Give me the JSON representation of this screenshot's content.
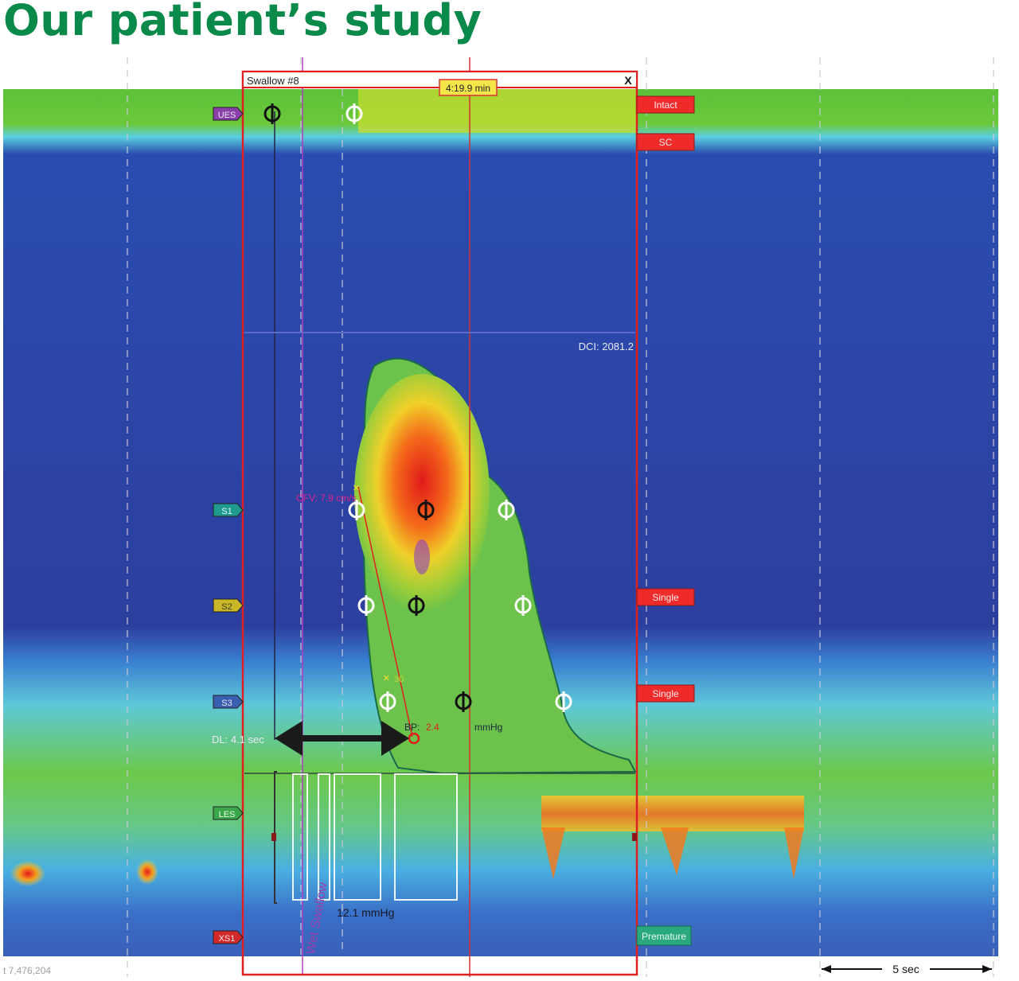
{
  "page_title": "Our patient’s study",
  "swallow_window": {
    "title": "Swallow #8",
    "close_label": "X",
    "time_marker": "4:19.9 min",
    "dci_label": "DCI: 2081.2",
    "cfv_label": "CFV: 7.9 cm/s",
    "bp_value": "2.4",
    "bp_label": "BP:",
    "bp_unit": "mmHg",
    "dl_label": "DL: 4.1 sec",
    "irp_value": "12.1 mmHg",
    "swallow_type": "Wet Swallow",
    "iso_value": "30"
  },
  "channel_markers": [
    {
      "label": "UES",
      "color": "#8b3fa8"
    },
    {
      "label": "S1",
      "color": "#1f9a8f"
    },
    {
      "label": "S2",
      "color": "#c8b828"
    },
    {
      "label": "S3",
      "color": "#3a5fb0"
    },
    {
      "label": "LES",
      "color": "#3aa84a"
    },
    {
      "label": "XS1",
      "color": "#d22a2a"
    }
  ],
  "classification_tags": [
    {
      "text": "Intact",
      "kind": "red"
    },
    {
      "text": "SC",
      "kind": "red"
    },
    {
      "text": "Single",
      "kind": "red"
    },
    {
      "text": "Single",
      "kind": "red"
    },
    {
      "text": "Premature",
      "kind": "green"
    }
  ],
  "footer": {
    "counter": "t 7,476,204",
    "scale_label": "5 sec"
  },
  "colors": {
    "title_green": "#0a8a4a",
    "window_border": "#e02020",
    "background_blue": "#2a3fa0"
  }
}
